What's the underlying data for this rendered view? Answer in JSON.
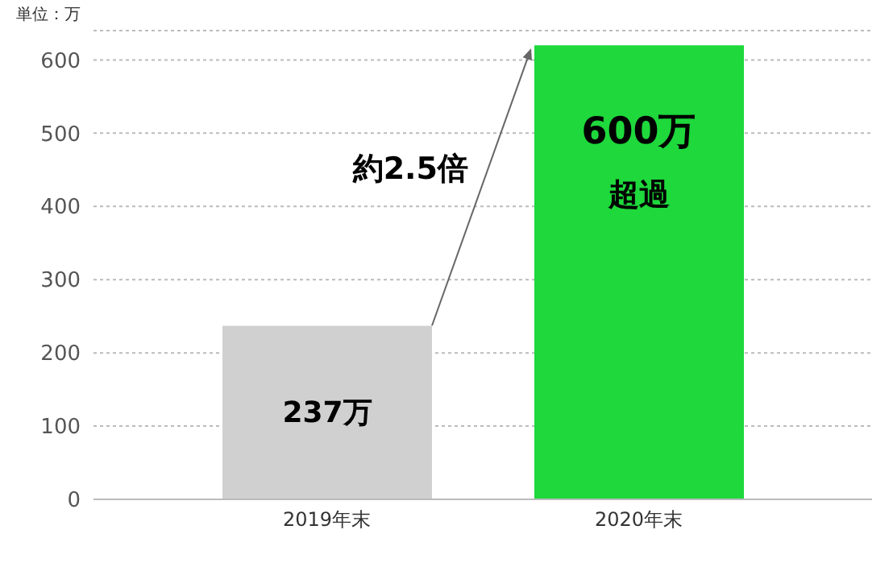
{
  "chart_data": {
    "type": "bar",
    "ylabel": "単位：万",
    "categories": [
      "2019年末",
      "2020年末"
    ],
    "values": [
      237,
      620
    ],
    "colors": [
      "#d0d0d0",
      "#1ed83c"
    ],
    "value_labels": [
      "237万",
      null
    ],
    "ylim": [
      0,
      640
    ],
    "yticks": [
      0,
      100,
      200,
      300,
      400,
      500,
      600
    ],
    "grid": "y",
    "annotations": [
      "約2.5倍",
      "600万",
      "超過"
    ]
  }
}
